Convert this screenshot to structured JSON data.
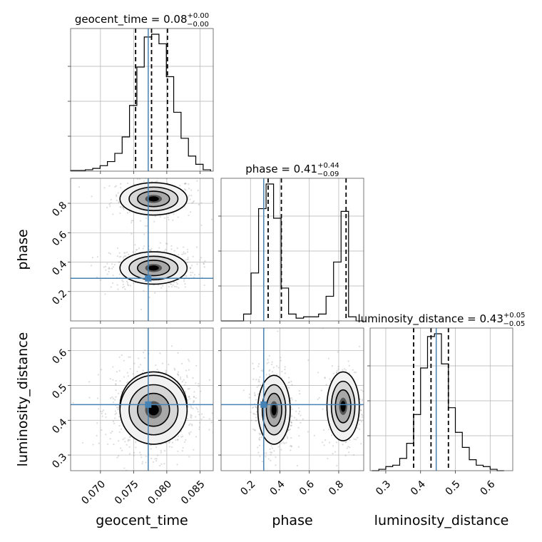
{
  "colors": {
    "truth": "#4682b4",
    "line": "#000000",
    "grid": "#b0b0b0",
    "scatter": "#9a9a9a"
  },
  "chart_data": {
    "type": "corner",
    "parameters": [
      "geocent_time",
      "phase",
      "luminosity_distance"
    ],
    "truths": {
      "geocent_time": 0.0772,
      "phase": 0.29,
      "luminosity_distance": 0.445
    },
    "ranges": {
      "geocent_time": [
        0.0655,
        0.087
      ],
      "phase": [
        0.0,
        0.97
      ],
      "luminosity_distance": [
        0.255,
        0.665
      ]
    },
    "ticks": {
      "geocent_time": [
        0.07,
        0.075,
        0.08,
        0.085
      ],
      "phase": [
        0.2,
        0.4,
        0.6,
        0.8
      ],
      "luminosity_distance": [
        0.3,
        0.4,
        0.5,
        0.6
      ]
    },
    "tick_labels": {
      "geocent_time": [
        "0.070",
        "0.075",
        "0.080",
        "0.085"
      ],
      "phase": [
        "0.2",
        "0.4",
        "0.6",
        "0.8"
      ],
      "luminosity_distance": [
        "0.3",
        "0.4",
        "0.5",
        "0.6"
      ]
    },
    "axis_labels": {
      "geocent_time": "geocent_time",
      "phase": "phase",
      "luminosity_distance": "luminosity_distance"
    },
    "titles": [
      {
        "param": "geocent_time",
        "prefix": "geocent_time = 0.08",
        "plus": "+0.00",
        "minus": "−0.00"
      },
      {
        "param": "phase",
        "prefix": "phase = 0.41",
        "plus": "+0.44",
        "minus": "−0.09"
      },
      {
        "param": "luminosity_distance",
        "prefix": "luminosity_distance = 0.43",
        "plus": "+0.05",
        "minus": "−0.05"
      }
    ],
    "quantiles": {
      "geocent_time": [
        0.0753,
        0.0777,
        0.0801
      ],
      "phase": [
        0.32,
        0.41,
        0.85
      ],
      "luminosity_distance": [
        0.38,
        0.43,
        0.48
      ]
    },
    "histograms": {
      "geocent_time": {
        "edges": [
          0.0655,
          0.06661,
          0.06772,
          0.06883,
          0.06994,
          0.07105,
          0.07216,
          0.07327,
          0.07438,
          0.07549,
          0.0766,
          0.07771,
          0.07882,
          0.07993,
          0.08104,
          0.08215,
          0.08326,
          0.08437,
          0.08548,
          0.0866
        ],
        "counts": [
          0.005,
          0.005,
          0.01,
          0.02,
          0.04,
          0.07,
          0.13,
          0.25,
          0.48,
          0.76,
          0.98,
          1.0,
          0.93,
          0.69,
          0.43,
          0.24,
          0.11,
          0.05,
          0.01
        ]
      },
      "phase": {
        "edges": [
          0.0,
          0.051,
          0.102,
          0.153,
          0.204,
          0.255,
          0.306,
          0.357,
          0.408,
          0.459,
          0.51,
          0.561,
          0.612,
          0.663,
          0.714,
          0.765,
          0.816,
          0.867,
          0.918,
          0.97
        ],
        "counts": [
          0.0,
          0.0,
          0.0,
          0.05,
          0.35,
          0.82,
          1.0,
          0.75,
          0.24,
          0.05,
          0.02,
          0.03,
          0.03,
          0.05,
          0.18,
          0.43,
          0.8,
          0.03,
          0.0
        ]
      },
      "luminosity_distance": {
        "edges": [
          0.26,
          0.28,
          0.3,
          0.32,
          0.34,
          0.36,
          0.38,
          0.4,
          0.42,
          0.44,
          0.46,
          0.48,
          0.5,
          0.52,
          0.54,
          0.56,
          0.58,
          0.6,
          0.62,
          0.64
        ],
        "counts": [
          0.0,
          0.01,
          0.03,
          0.04,
          0.09,
          0.2,
          0.41,
          0.75,
          0.98,
          1.0,
          0.78,
          0.46,
          0.28,
          0.17,
          0.08,
          0.04,
          0.03,
          0.01,
          0.0
        ]
      }
    },
    "posterior_modes": [
      {
        "geocent_time": 0.078,
        "phase": 0.83,
        "luminosity_distance": 0.44,
        "weight": 0.35
      },
      {
        "geocent_time": 0.078,
        "phase": 0.36,
        "luminosity_distance": 0.43,
        "weight": 0.65
      }
    ]
  }
}
